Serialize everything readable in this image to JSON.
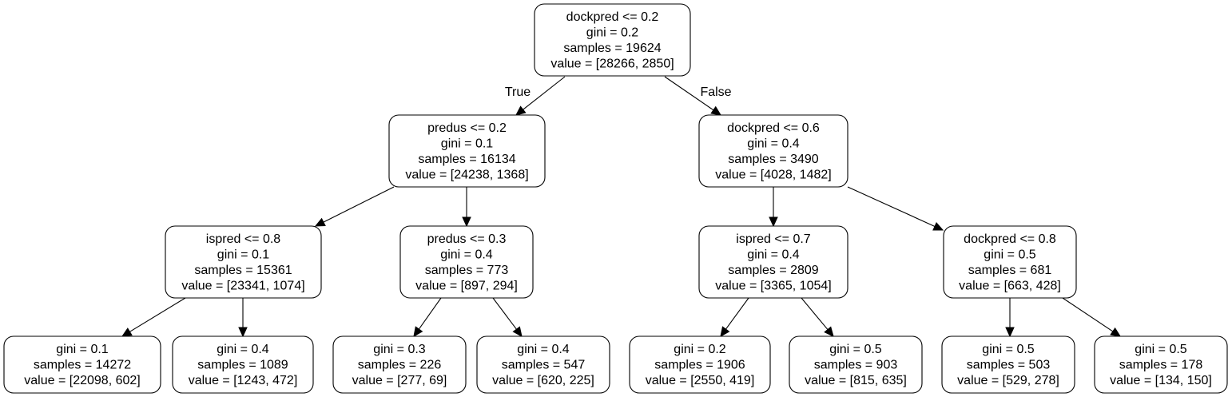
{
  "tree": {
    "nodes": [
      {
        "id": "n0",
        "lines": [
          "dockpred <= 0.2",
          "gini = 0.2",
          "samples = 19624",
          "value = [28266, 2850]"
        ]
      },
      {
        "id": "n1",
        "lines": [
          "predus <= 0.2",
          "gini = 0.1",
          "samples = 16134",
          "value = [24238, 1368]"
        ]
      },
      {
        "id": "n2",
        "lines": [
          "dockpred <= 0.6",
          "gini = 0.4",
          "samples = 3490",
          "value = [4028, 1482]"
        ]
      },
      {
        "id": "n3",
        "lines": [
          "ispred <= 0.8",
          "gini = 0.1",
          "samples = 15361",
          "value = [23341, 1074]"
        ]
      },
      {
        "id": "n4",
        "lines": [
          "predus <= 0.3",
          "gini = 0.4",
          "samples = 773",
          "value = [897, 294]"
        ]
      },
      {
        "id": "n5",
        "lines": [
          "ispred <= 0.7",
          "gini = 0.4",
          "samples = 2809",
          "value = [3365, 1054]"
        ]
      },
      {
        "id": "n6",
        "lines": [
          "dockpred <= 0.8",
          "gini = 0.5",
          "samples = 681",
          "value = [663, 428]"
        ]
      },
      {
        "id": "n7",
        "lines": [
          "gini = 0.1",
          "samples = 14272",
          "value = [22098, 602]"
        ]
      },
      {
        "id": "n8",
        "lines": [
          "gini = 0.4",
          "samples = 1089",
          "value = [1243, 472]"
        ]
      },
      {
        "id": "n9",
        "lines": [
          "gini = 0.3",
          "samples = 226",
          "value = [277, 69]"
        ]
      },
      {
        "id": "n10",
        "lines": [
          "gini = 0.4",
          "samples = 547",
          "value = [620, 225]"
        ]
      },
      {
        "id": "n11",
        "lines": [
          "gini = 0.2",
          "samples = 1906",
          "value = [2550, 419]"
        ]
      },
      {
        "id": "n12",
        "lines": [
          "gini = 0.5",
          "samples = 903",
          "value = [815, 635]"
        ]
      },
      {
        "id": "n13",
        "lines": [
          "gini = 0.5",
          "samples = 503",
          "value = [529, 278]"
        ]
      },
      {
        "id": "n14",
        "lines": [
          "gini = 0.5",
          "samples = 178",
          "value = [134, 150]"
        ]
      }
    ],
    "edges": [
      {
        "from": "n0",
        "to": "n1",
        "label": "True"
      },
      {
        "from": "n0",
        "to": "n2",
        "label": "False"
      },
      {
        "from": "n1",
        "to": "n3",
        "label": ""
      },
      {
        "from": "n1",
        "to": "n4",
        "label": ""
      },
      {
        "from": "n2",
        "to": "n5",
        "label": ""
      },
      {
        "from": "n2",
        "to": "n6",
        "label": ""
      },
      {
        "from": "n3",
        "to": "n7",
        "label": ""
      },
      {
        "from": "n3",
        "to": "n8",
        "label": ""
      },
      {
        "from": "n4",
        "to": "n9",
        "label": ""
      },
      {
        "from": "n4",
        "to": "n10",
        "label": ""
      },
      {
        "from": "n5",
        "to": "n11",
        "label": ""
      },
      {
        "from": "n5",
        "to": "n12",
        "label": ""
      },
      {
        "from": "n6",
        "to": "n13",
        "label": ""
      },
      {
        "from": "n6",
        "to": "n14",
        "label": ""
      }
    ]
  }
}
